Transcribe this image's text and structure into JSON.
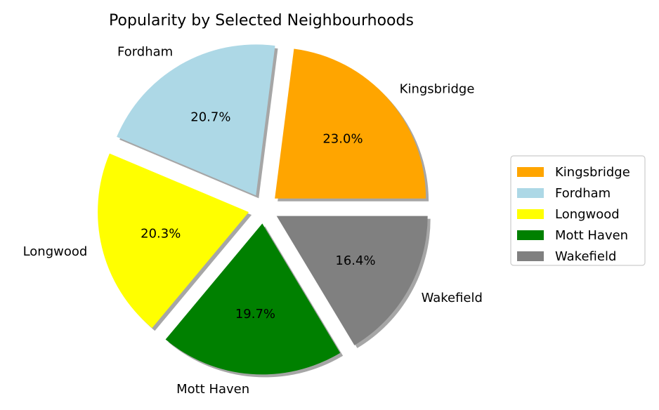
{
  "chart_data": {
    "type": "pie",
    "title": "Popularity by Selected Neighbourhoods",
    "categories": [
      "Kingsbridge",
      "Fordham",
      "Longwood",
      "Mott Haven",
      "Wakefield"
    ],
    "values": [
      23.0,
      20.7,
      20.3,
      19.7,
      16.4
    ],
    "value_labels": [
      "23.0%",
      "20.7%",
      "20.3%",
      "19.7%",
      "16.4%"
    ],
    "colors": [
      "#ffa500",
      "#add8e6",
      "#ffff00",
      "#008000",
      "#808080"
    ],
    "start_angle_deg": 0,
    "direction": "counterclockwise",
    "exploded": true,
    "shadow": true,
    "legend": {
      "placement": "center-right",
      "entries": [
        "Kingsbridge",
        "Fordham",
        "Longwood",
        "Mott Haven",
        "Wakefield"
      ]
    }
  }
}
